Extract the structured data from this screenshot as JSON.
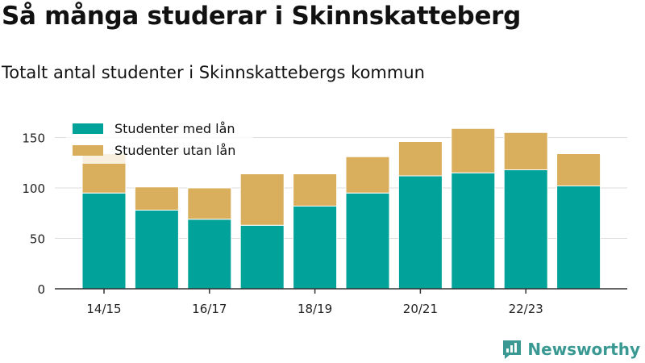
{
  "title": "Så många studerar i Skinnskatteberg",
  "subtitle": "Totalt antal studenter i Skinnskattebergs kommun",
  "brand": {
    "name": "Newsworthy",
    "color": "#3a9a93",
    "icon": "newsworthy-logo-icon"
  },
  "colors": {
    "med_lan": "#00a29a",
    "utan_lan": "#d9ae5c",
    "axis": "#333333",
    "grid": "#dddddd"
  },
  "chart_data": {
    "type": "bar",
    "stacked": true,
    "categories": [
      "14/15",
      "15/16",
      "16/17",
      "17/18",
      "18/19",
      "19/20",
      "20/21",
      "21/22",
      "22/23",
      "23/24"
    ],
    "x_tick_labels": [
      "14/15",
      "",
      "16/17",
      "",
      "18/19",
      "",
      "20/21",
      "",
      "22/23",
      ""
    ],
    "series": [
      {
        "name": "Studenter med lån",
        "values": [
          95,
          78,
          69,
          63,
          82,
          95,
          112,
          115,
          118,
          102
        ]
      },
      {
        "name": "Studenter utan lån",
        "values": [
          39,
          23,
          31,
          51,
          32,
          36,
          34,
          44,
          37,
          32
        ]
      }
    ],
    "ylim": [
      0,
      170
    ],
    "yticks": [
      0,
      50,
      100,
      150
    ],
    "grid": true,
    "legend_position": "top-left"
  }
}
